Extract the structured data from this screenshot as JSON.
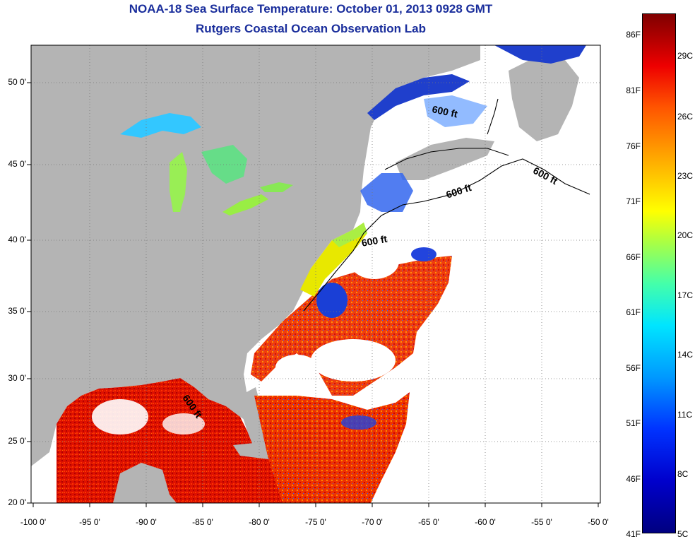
{
  "title": {
    "line1": "NOAA-18 Sea Surface Temperature:  October 01, 2013 0928 GMT",
    "line2": "Rutgers Coastal Ocean Observation Lab"
  },
  "axes": {
    "lon_ticks": [
      "-100 0'",
      "-95 0'",
      "-90 0'",
      "-85 0'",
      "-80 0'",
      "-75 0'",
      "-70 0'",
      "-65 0'",
      "-60 0'",
      "-55 0'",
      "-50 0'"
    ],
    "lat_ticks": [
      "50 0'",
      "45 0'",
      "40 0'",
      "35 0'",
      "30 0'",
      "25 0'",
      "20 0'"
    ]
  },
  "colorbar": {
    "fahrenheit": [
      "86F",
      "81F",
      "76F",
      "71F",
      "66F",
      "61F",
      "56F",
      "51F",
      "46F",
      "41F"
    ],
    "celsius": [
      "29C",
      "26C",
      "23C",
      "20C",
      "17C",
      "14C",
      "11C",
      "8C",
      "5C"
    ]
  },
  "contour_labels": [
    "600 ft",
    "600 ft",
    "600 ft",
    "600 ft",
    "600 ft"
  ],
  "colors": {
    "land": "#b4b4b4",
    "no_data": "#ffffff",
    "title": "#1a2e9c",
    "warm": "#dd1100",
    "cool": "#1133cc"
  }
}
